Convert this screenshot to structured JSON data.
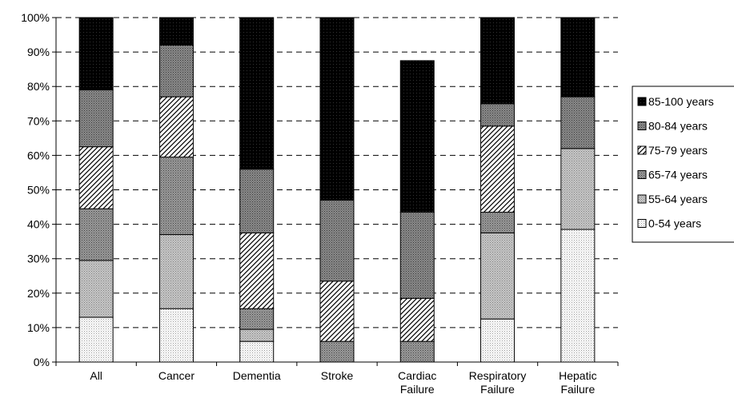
{
  "chart_data": {
    "type": "bar",
    "stacked": true,
    "percent_scale": true,
    "title": "",
    "xlabel": "",
    "ylabel": "",
    "ylim": [
      0,
      100
    ],
    "y_ticks": [
      "0%",
      "10%",
      "20%",
      "30%",
      "40%",
      "50%",
      "60%",
      "70%",
      "80%",
      "90%",
      "100%"
    ],
    "grid": "dashed horizontal",
    "legend_position": "right",
    "categories": [
      [
        "All"
      ],
      [
        "Cancer"
      ],
      [
        "Dementia"
      ],
      [
        "Stroke"
      ],
      [
        "Cardiac",
        "Failure"
      ],
      [
        "Respiratory",
        "Failure"
      ],
      [
        "Hepatic",
        "Failure"
      ]
    ],
    "series": [
      {
        "name": "0-54 years",
        "values": [
          13,
          15.5,
          6,
          0,
          0,
          12.5,
          38.5
        ]
      },
      {
        "name": "55-64 years",
        "values": [
          16.5,
          21.5,
          3.5,
          0,
          0,
          25,
          23.5
        ]
      },
      {
        "name": "65-74 years",
        "values": [
          15,
          22.5,
          6,
          6,
          6,
          6,
          0
        ]
      },
      {
        "name": "75-79 years",
        "values": [
          18,
          17.5,
          22,
          17.5,
          12.5,
          25,
          0
        ]
      },
      {
        "name": "80-84 years",
        "values": [
          16.5,
          15,
          18.5,
          23.5,
          25,
          6.5,
          15
        ]
      },
      {
        "name": "85-100 years",
        "values": [
          21,
          8,
          44,
          53,
          44,
          25,
          23
        ]
      }
    ]
  }
}
